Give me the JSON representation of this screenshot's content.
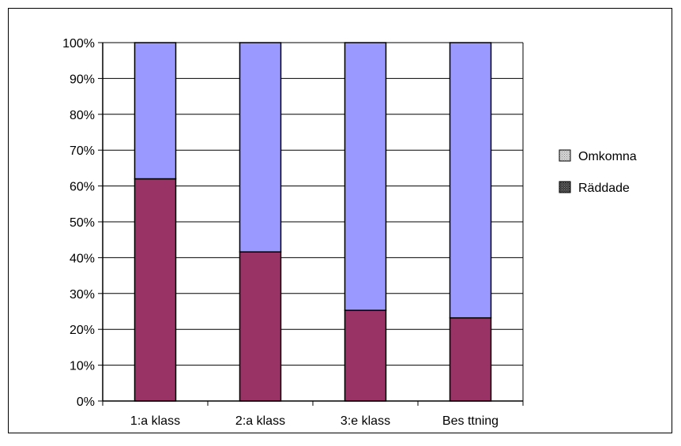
{
  "chart_data": {
    "type": "bar",
    "stacked": true,
    "categories": [
      "1:a klass",
      "2:a klass",
      "3:e klass",
      "Bes ttning"
    ],
    "series": [
      {
        "name": "Räddade",
        "values": [
          62,
          41.6,
          25.3,
          23.2
        ],
        "color": "#993366"
      },
      {
        "name": "Omkomna",
        "values": [
          38,
          58.4,
          74.7,
          76.8
        ],
        "color": "#9999ff"
      }
    ],
    "ylim": [
      0,
      100
    ],
    "yticks": [
      "0%",
      "10%",
      "20%",
      "30%",
      "40%",
      "50%",
      "60%",
      "70%",
      "80%",
      "90%",
      "100%"
    ],
    "grid": true,
    "legend": {
      "position": "right",
      "entries": [
        {
          "label": "Omkomna",
          "swatch_color": "#c0c0c0"
        },
        {
          "label": "Räddade",
          "swatch_color": "#4d4d4d"
        }
      ]
    }
  }
}
